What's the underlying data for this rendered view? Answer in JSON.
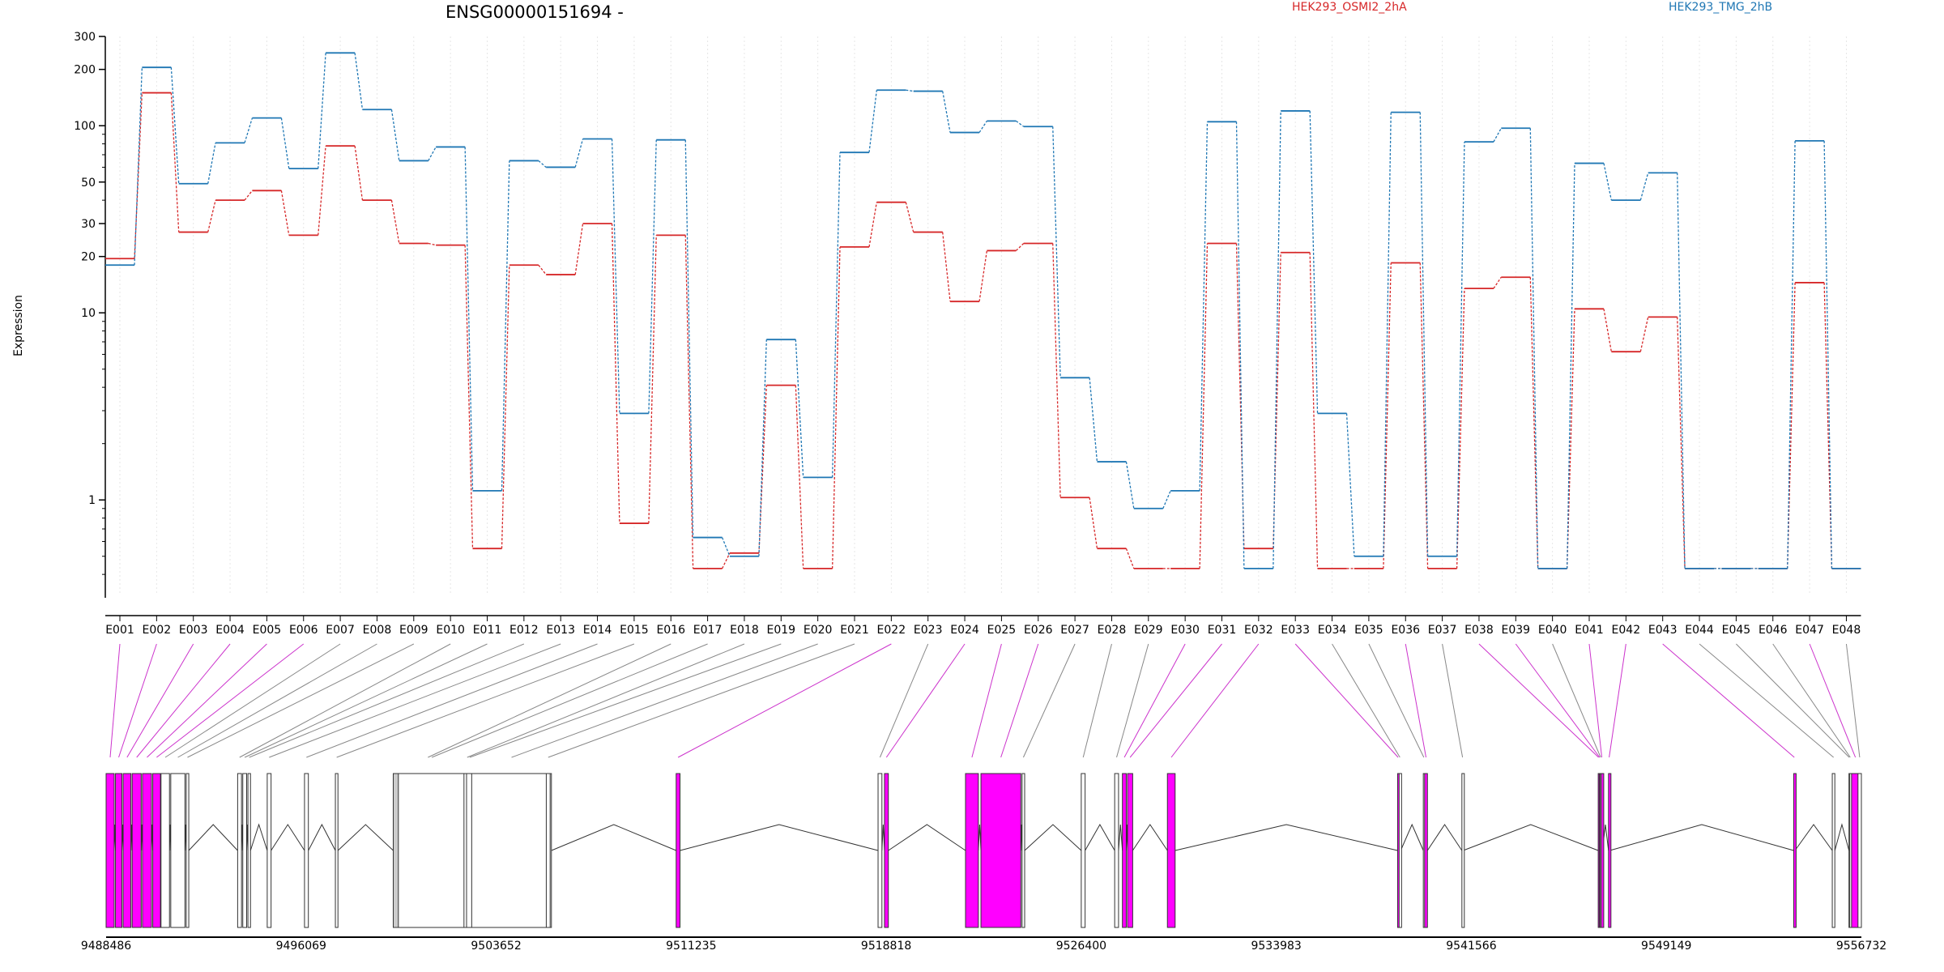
{
  "chart_data": {
    "type": "line",
    "title": "ENSG00000151694 -",
    "ylabel": "Expression",
    "y_scale": "log",
    "ylim": [
      0.3,
      300
    ],
    "y_ticks": [
      "300",
      "200",
      "100",
      "50",
      "30",
      "20",
      "10",
      "1"
    ],
    "y_tick_values": [
      300,
      200,
      100,
      50,
      30,
      20,
      10,
      1
    ],
    "grid": "vertical dotted lines at each exon bin",
    "legend_placement": "top",
    "categories": [
      "E001",
      "E002",
      "E003",
      "E004",
      "E005",
      "E006",
      "E007",
      "E008",
      "E009",
      "E010",
      "E011",
      "E012",
      "E013",
      "E014",
      "E015",
      "E016",
      "E017",
      "E018",
      "E019",
      "E020",
      "E021",
      "E022",
      "E023",
      "E024",
      "E025",
      "E026",
      "E027",
      "E028",
      "E029",
      "E030",
      "E031",
      "E032",
      "E033",
      "E034",
      "E035",
      "E036",
      "E037",
      "E038",
      "E039",
      "E040",
      "E041",
      "E042",
      "E043",
      "E044",
      "E045",
      "E046",
      "E047",
      "E048"
    ],
    "series": [
      {
        "name": "HEK293_OSMI2_2hA",
        "color": "#d62728",
        "values": [
          19.5,
          150,
          27,
          40,
          45,
          26,
          78,
          40,
          23.5,
          23,
          0.55,
          18,
          16,
          30,
          0.75,
          26,
          0.43,
          0.52,
          4.1,
          0.43,
          22.5,
          39,
          27,
          11.5,
          21.5,
          23.5,
          1.03,
          0.55,
          0.43,
          0.43,
          23.5,
          0.55,
          21,
          0.43,
          0.43,
          18.5,
          0.43,
          13.5,
          15.5,
          0.43,
          10.5,
          6.2,
          9.5,
          0.43,
          0.43,
          0.43,
          14.5,
          0.43
        ]
      },
      {
        "name": "HEK293_TMG_2hB",
        "color": "#1f77b4",
        "values": [
          18,
          205,
          49,
          81,
          110,
          59,
          245,
          122,
          65,
          77,
          1.12,
          65,
          60,
          85,
          2.9,
          84,
          0.63,
          0.5,
          7.2,
          1.32,
          72,
          155,
          153,
          92,
          106,
          99,
          4.5,
          1.6,
          0.9,
          1.12,
          105,
          0.43,
          120,
          2.9,
          0.5,
          118,
          0.5,
          82,
          97,
          0.43,
          63,
          40,
          56,
          0.43,
          0.43,
          0.43,
          83,
          0.43
        ]
      }
    ],
    "gene_model": {
      "coordinate_ticks": [
        "9488486",
        "9496069",
        "9503652",
        "9511235",
        "9518818",
        "9526400",
        "9533983",
        "9541566",
        "9549149",
        "9556732"
      ],
      "coordinate_range": [
        9488486,
        9556732
      ],
      "colors": {
        "exon_highlight": "#ff00ff",
        "exon_constitutive": "#cccccc",
        "exon_plain": "#ffffff",
        "intron": "#333333",
        "connector_highlight": "#cc33cc",
        "connector_plain": "#888888"
      },
      "highlighted_exons": [
        "E001",
        "E002",
        "E003",
        "E004",
        "E005",
        "E006",
        "E022",
        "E024",
        "E025",
        "E026",
        "E030",
        "E031",
        "E032",
        "E033",
        "E036",
        "E038",
        "E039",
        "E041",
        "E042",
        "E043",
        "E047"
      ],
      "exon_starts": [
        9488486,
        9488850,
        9489150,
        9489500,
        9489900,
        9490300,
        9490620,
        9491000,
        9491600,
        9493600,
        9493800,
        9494000,
        9494750,
        9496200,
        9497400,
        9499650,
        9499850,
        9502400,
        9502500,
        9502700,
        9505600,
        9510650,
        9518500,
        9518750,
        9521900,
        9522500,
        9524100,
        9526400,
        9527700,
        9528000,
        9528200,
        9529750,
        9538700,
        9538760,
        9539700,
        9539750,
        9541200,
        9546500,
        9546540,
        9546580,
        9546620,
        9546900,
        9554100,
        9555600,
        9556250,
        9556280,
        9556350,
        9556600
      ],
      "exon_ends": [
        9488800,
        9489100,
        9489450,
        9489850,
        9490250,
        9490600,
        9490950,
        9491550,
        9491700,
        9493750,
        9493950,
        9494100,
        9494900,
        9496350,
        9497500,
        9502350,
        9502450,
        9502650,
        9502750,
        9505800,
        9505750,
        9510800,
        9518650,
        9518900,
        9522400,
        9524050,
        9524200,
        9526550,
        9527850,
        9528150,
        9528400,
        9530050,
        9538740,
        9538820,
        9539740,
        9539860,
        9541250,
        9546530,
        9546570,
        9546610,
        9546660,
        9546950,
        9554150,
        9555700,
        9556270,
        9556320,
        9556650,
        9556732
      ]
    }
  }
}
